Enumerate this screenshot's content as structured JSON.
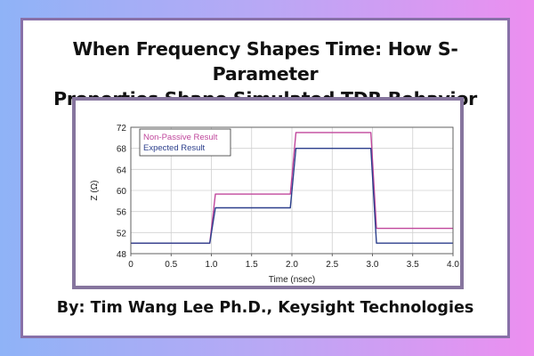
{
  "page": {
    "title_line1": "When Frequency Shapes Time: How S-Parameter",
    "title_line2": "Properties Shape Simulated TDR Behavior",
    "byline": "By: Tim Wang Lee Ph.D., Keysight Technologies"
  },
  "colors": {
    "background_left": "#8fb3f7",
    "background_right": "#ec8ff0",
    "frame": "#8870a8",
    "non_passive": "#c0479c",
    "expected": "#2c3f8c"
  },
  "chart_data": {
    "type": "line",
    "xlabel": "Time (nsec)",
    "ylabel": "Z (Ω)",
    "xlim": [
      0,
      4.0
    ],
    "ylim": [
      48,
      72
    ],
    "xticks": [
      "0",
      "0.5",
      "1.0",
      "1.5",
      "2.0",
      "2.5",
      "3.0",
      "3.5",
      "4.0"
    ],
    "yticks": [
      "48",
      "52",
      "56",
      "60",
      "64",
      "68",
      "72"
    ],
    "grid": true,
    "legend_position": "top-left",
    "series": [
      {
        "name": "Non-Passive Result",
        "color": "#c0479c",
        "x": [
          0,
          0.98,
          1.05,
          1.98,
          2.05,
          2.98,
          3.05,
          4.0
        ],
        "y": [
          50,
          50,
          59.3,
          59.3,
          71,
          71,
          52.8,
          52.8
        ]
      },
      {
        "name": "Expected Result",
        "color": "#2c3f8c",
        "x": [
          0,
          0.98,
          1.05,
          1.98,
          2.05,
          2.98,
          3.05,
          4.0
        ],
        "y": [
          50,
          50,
          56.7,
          56.7,
          68,
          68,
          50,
          50
        ]
      }
    ]
  }
}
